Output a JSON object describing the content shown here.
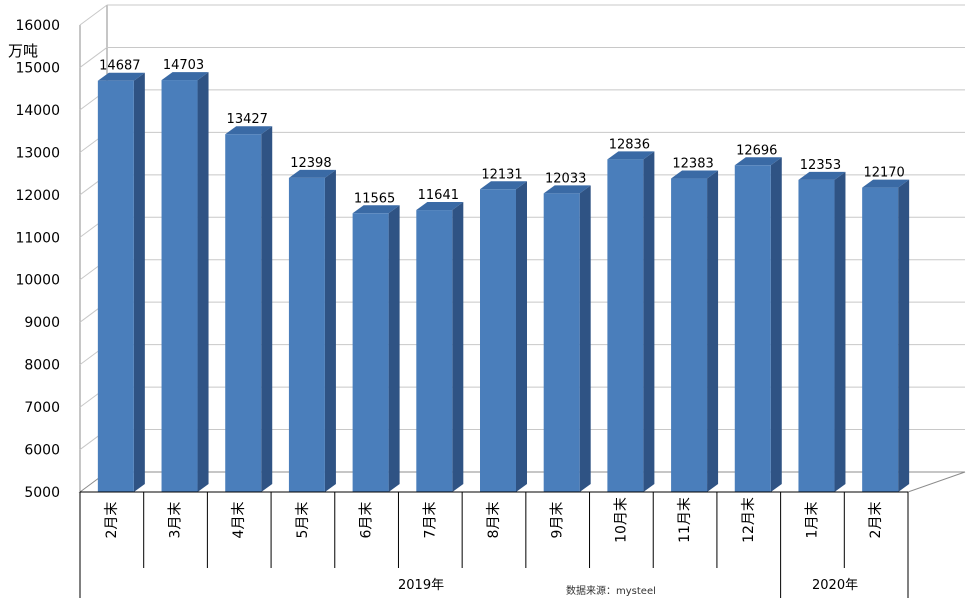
{
  "chart_data": {
    "type": "bar",
    "style": "3d-column",
    "ylabel": "万吨",
    "ylim": [
      5000,
      16000
    ],
    "yticks": [
      5000,
      6000,
      7000,
      8000,
      9000,
      10000,
      11000,
      12000,
      13000,
      14000,
      15000,
      16000
    ],
    "grid": true,
    "categories": [
      "2月末",
      "3月末",
      "4月末",
      "5月末",
      "6月末",
      "7月末",
      "8月末",
      "9月末",
      "10月末",
      "11月末",
      "12月末",
      "1月末",
      "2月末"
    ],
    "values": [
      14687,
      14703,
      13427,
      12398,
      11565,
      11641,
      12131,
      12033,
      12836,
      12383,
      12696,
      12353,
      12170
    ],
    "groups": [
      {
        "label": "2019年",
        "count": 11
      },
      {
        "label": "2020年",
        "count": 2
      }
    ],
    "colors": {
      "bar_front": "#4a7ebb",
      "bar_side": "#2f5384",
      "bar_top": "#3a6aa5",
      "grid": "#c8c8c8",
      "axis": "#8c8c8c"
    }
  },
  "source_note": "数据来源：mysteel"
}
